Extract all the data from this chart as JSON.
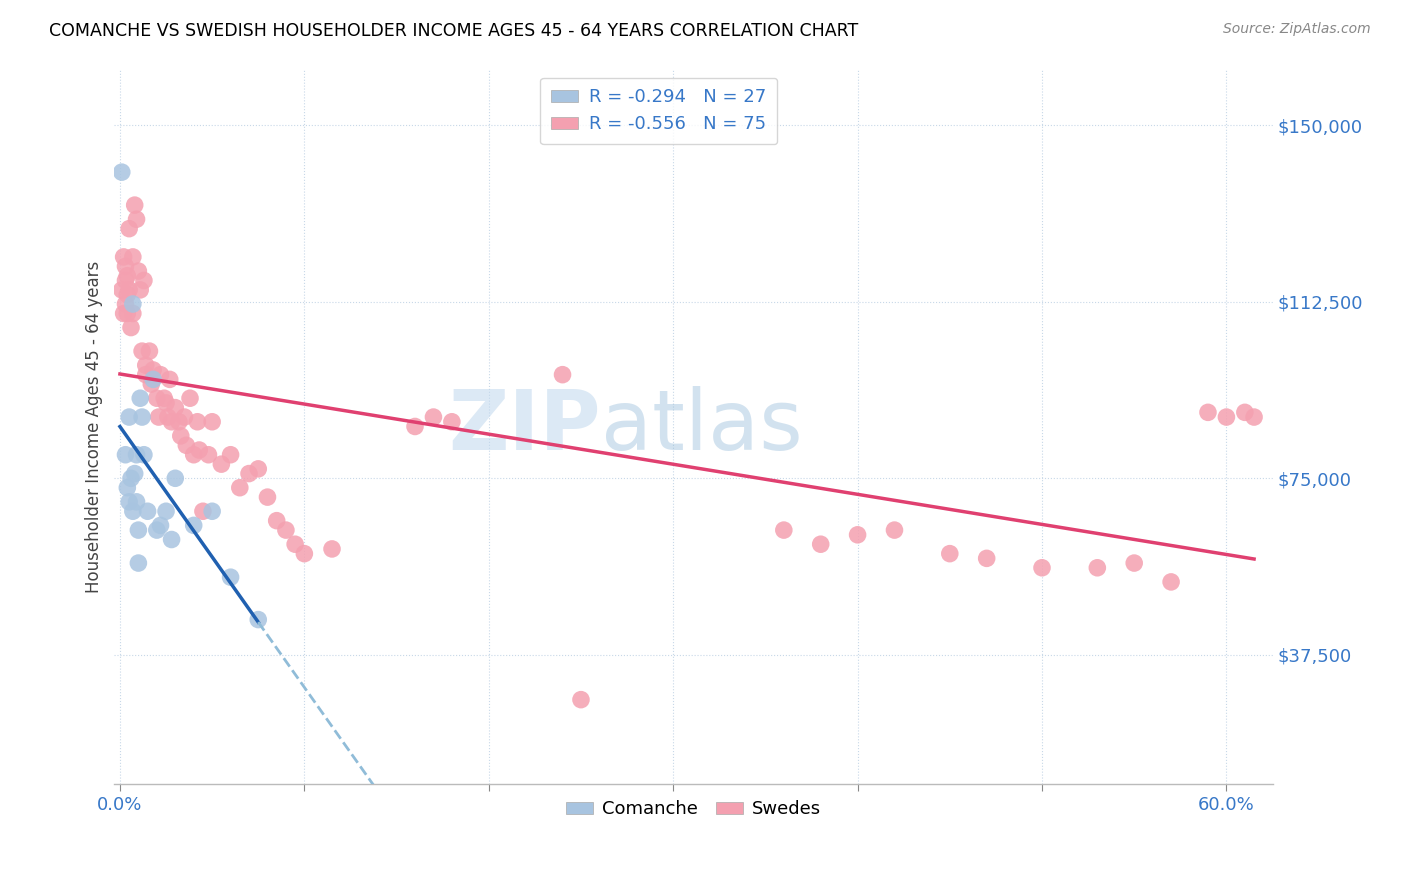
{
  "title": "COMANCHE VS SWEDISH HOUSEHOLDER INCOME AGES 45 - 64 YEARS CORRELATION CHART",
  "source": "Source: ZipAtlas.com",
  "ylabel": "Householder Income Ages 45 - 64 years",
  "ytick_labels": [
    "$37,500",
    "$75,000",
    "$112,500",
    "$150,000"
  ],
  "ytick_values": [
    37500,
    75000,
    112500,
    150000
  ],
  "ymin": 10000,
  "ymax": 162000,
  "xmin": -0.003,
  "xmax": 0.625,
  "legend_comanche": "R = -0.294   N = 27",
  "legend_swedes": "R = -0.556   N = 75",
  "comanche_color": "#a8c4e0",
  "swedes_color": "#f4a0b0",
  "trendline_comanche_color": "#2060b0",
  "trendline_swedes_color": "#e04070",
  "trendline_dash_color": "#90bcd8",
  "watermark_zip": "ZIP",
  "watermark_atlas": "atlas",
  "comanche_x": [
    0.001,
    0.003,
    0.004,
    0.005,
    0.005,
    0.006,
    0.007,
    0.007,
    0.008,
    0.009,
    0.009,
    0.01,
    0.01,
    0.011,
    0.012,
    0.013,
    0.015,
    0.018,
    0.02,
    0.022,
    0.025,
    0.028,
    0.03,
    0.04,
    0.05,
    0.06,
    0.075
  ],
  "comanche_y": [
    140000,
    80000,
    73000,
    70000,
    88000,
    75000,
    68000,
    112000,
    76000,
    80000,
    70000,
    64000,
    57000,
    92000,
    88000,
    80000,
    68000,
    96000,
    64000,
    65000,
    68000,
    62000,
    75000,
    65000,
    68000,
    54000,
    45000
  ],
  "swedes_x": [
    0.001,
    0.002,
    0.002,
    0.003,
    0.003,
    0.003,
    0.004,
    0.004,
    0.004,
    0.005,
    0.005,
    0.006,
    0.007,
    0.007,
    0.008,
    0.009,
    0.01,
    0.011,
    0.012,
    0.013,
    0.014,
    0.014,
    0.016,
    0.017,
    0.018,
    0.02,
    0.021,
    0.022,
    0.024,
    0.025,
    0.026,
    0.027,
    0.028,
    0.03,
    0.032,
    0.033,
    0.035,
    0.036,
    0.038,
    0.04,
    0.042,
    0.043,
    0.045,
    0.048,
    0.05,
    0.055,
    0.06,
    0.065,
    0.07,
    0.075,
    0.08,
    0.085,
    0.09,
    0.095,
    0.1,
    0.115,
    0.16,
    0.17,
    0.18,
    0.24,
    0.25,
    0.36,
    0.38,
    0.4,
    0.42,
    0.45,
    0.47,
    0.5,
    0.53,
    0.55,
    0.57,
    0.59,
    0.6,
    0.61,
    0.615
  ],
  "swedes_y": [
    115000,
    122000,
    110000,
    117000,
    112000,
    120000,
    118000,
    110000,
    114000,
    128000,
    115000,
    107000,
    122000,
    110000,
    133000,
    130000,
    119000,
    115000,
    102000,
    117000,
    99000,
    97000,
    102000,
    95000,
    98000,
    92000,
    88000,
    97000,
    92000,
    91000,
    88000,
    96000,
    87000,
    90000,
    87000,
    84000,
    88000,
    82000,
    92000,
    80000,
    87000,
    81000,
    68000,
    80000,
    87000,
    78000,
    80000,
    73000,
    76000,
    77000,
    71000,
    66000,
    64000,
    61000,
    59000,
    60000,
    86000,
    88000,
    87000,
    97000,
    28000,
    64000,
    61000,
    63000,
    64000,
    59000,
    58000,
    56000,
    56000,
    57000,
    53000,
    89000,
    88000,
    89000,
    88000
  ]
}
